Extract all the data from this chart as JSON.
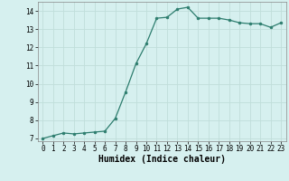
{
  "x": [
    0,
    1,
    2,
    3,
    4,
    5,
    6,
    7,
    8,
    9,
    10,
    11,
    12,
    13,
    14,
    15,
    16,
    17,
    18,
    19,
    20,
    21,
    22,
    23
  ],
  "y": [
    7.0,
    7.15,
    7.3,
    7.25,
    7.3,
    7.35,
    7.4,
    8.1,
    9.55,
    11.1,
    12.2,
    13.6,
    13.65,
    14.1,
    14.2,
    13.6,
    13.6,
    13.6,
    13.5,
    13.35,
    13.3,
    13.3,
    13.1,
    13.35
  ],
  "line_color": "#2d7d6e",
  "marker": "o",
  "marker_size": 2,
  "bg_color": "#d6f0ef",
  "grid_color": "#c0deda",
  "xlabel": "Humidex (Indice chaleur)",
  "ylim_min": 6.85,
  "ylim_max": 14.5,
  "xlim_min": -0.5,
  "xlim_max": 23.5,
  "yticks": [
    7,
    8,
    9,
    10,
    11,
    12,
    13,
    14
  ],
  "xticks": [
    0,
    1,
    2,
    3,
    4,
    5,
    6,
    7,
    8,
    9,
    10,
    11,
    12,
    13,
    14,
    15,
    16,
    17,
    18,
    19,
    20,
    21,
    22,
    23
  ],
  "tick_fontsize": 5.5,
  "xlabel_fontsize": 7,
  "line_width": 0.9
}
